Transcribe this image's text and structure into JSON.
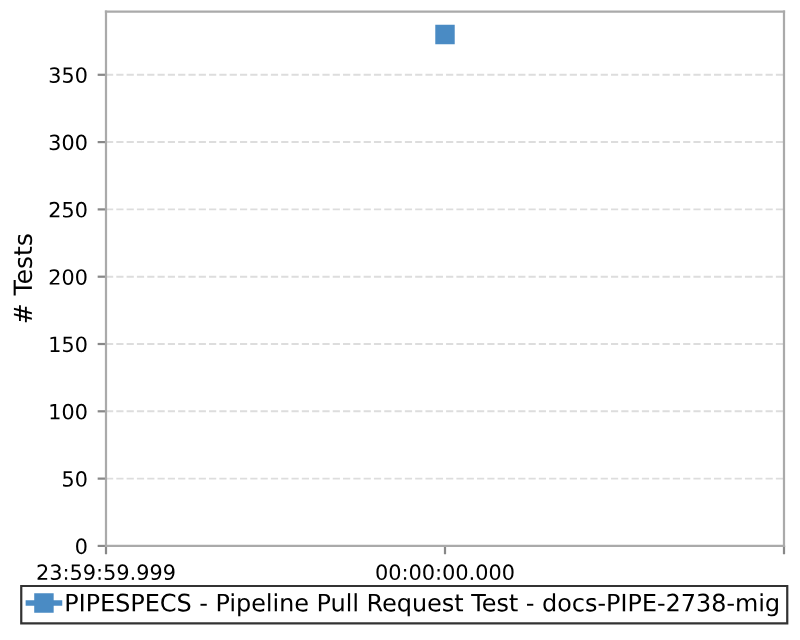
{
  "chart_data": {
    "type": "line",
    "ylabel": "# Tests",
    "categories": [
      "23:59:59.999",
      "00:00:00.000",
      null
    ],
    "series": [
      {
        "name": "PIPESPECS - Pipeline Pull Request Test - docs-PIPE-2738-mig",
        "color": "#4a8bc4",
        "values": [
          null,
          380,
          null
        ]
      }
    ],
    "ylim": [
      0,
      397
    ],
    "yticks": [
      0,
      50,
      100,
      150,
      200,
      250,
      300,
      350
    ],
    "grid": "y",
    "legend": "bottom",
    "marker": "square",
    "line_style": "solid"
  }
}
